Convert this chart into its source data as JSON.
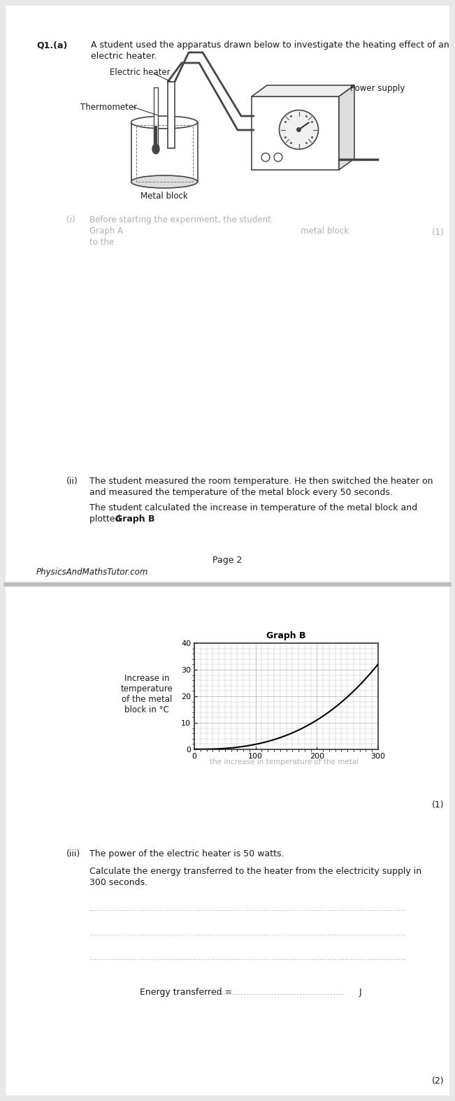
{
  "page_bg": "#e8e8e8",
  "paper_bg": "#ffffff",
  "page_separator_color": "#bbbbbb",
  "q1_label": "Q1.(a)",
  "q1_text_line1": "A student used the apparatus drawn below to investigate the heating effect of an",
  "q1_text_line2": "electric heater.",
  "apparatus_labels": {
    "electric_heater": "Electric heater",
    "thermometer": "Thermometer",
    "power_supply": "Power supply",
    "metal_block": "Metal block"
  },
  "part_i_roman": "(i)",
  "part_i_text_faded": "Before starting the experiment, the student",
  "part_i_graph_text": "Graph A",
  "part_i_faded2": "metal block",
  "part_i_faded3": "to the",
  "part_ii_roman": "(ii)",
  "part_ii_text_line1": "The student measured the room temperature. He then switched the heater on",
  "part_ii_text_line2": "and measured the temperature of the metal block every 50 seconds.",
  "part_ii_text2_line1": "The student calculated the increase in temperature of the metal block and",
  "part_ii_text2_line2_pre": "plotted ",
  "part_ii_bold": "Graph B",
  "part_ii_text2_line2_end": ".",
  "page2_text": "Page 2",
  "watermark": "PhysicsAndMathsTutor.com",
  "graph_title": "Graph B",
  "graph_ylabel_label": "Increase in\ntemperature\nof the metal\nblock in °C",
  "graph_yticks": [
    0,
    10,
    20,
    30,
    40
  ],
  "graph_xticks": [
    0,
    100,
    200,
    300
  ],
  "graph_xlim": [
    0,
    300
  ],
  "graph_ylim": [
    0,
    40
  ],
  "graph_grid_color": "#bbbbbb",
  "graph_line_color": "#000000",
  "graph_curve_x": [
    0,
    50,
    100,
    150,
    200,
    250,
    300
  ],
  "graph_curve_y": [
    0,
    0.5,
    2,
    5,
    11,
    20,
    32
  ],
  "part_ii_mark": "(1)",
  "faded_answer_text": "the increase in temperature of the metal",
  "part_iii_roman": "(iii)",
  "part_iii_text": "The power of the electric heater is 50 watts.",
  "part_iii_calc_line1": "Calculate the energy transferred to the heater from the electricity supply in",
  "part_iii_calc_line2": "300 seconds.",
  "part_iii_dotline": ".............................................................................................................................",
  "part_iii_energy_label": "Energy transferred = ",
  "part_iii_energy_dots": "...............................................",
  "part_iii_energy_unit": " J",
  "part_iii_mark": "(2)",
  "text_color": "#1a1a1a",
  "faded_color": "#b0b0b0",
  "dot_color": "#888888"
}
